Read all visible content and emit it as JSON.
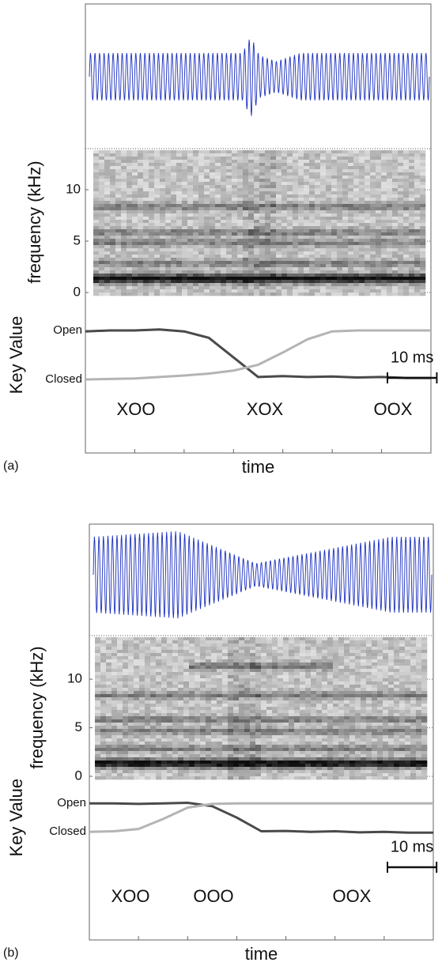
{
  "chart_data": [
    {
      "type": "line",
      "label": "(a)",
      "xlabel": "time",
      "spectrogram": {
        "ylabel": "frequency (kHz)",
        "ylim": [
          0,
          14
        ],
        "yticks": [
          0,
          5,
          10
        ]
      },
      "ylabel": "Key Value",
      "ylim": [
        -1.5,
        1.5
      ],
      "yticks": [
        {
          "value": 1,
          "label": "Open"
        },
        {
          "value": 0,
          "label": "Closed"
        }
      ],
      "xlim": [
        0,
        70
      ],
      "xticks": [
        0,
        10,
        20,
        30,
        40,
        50,
        60,
        70
      ],
      "x": [
        0,
        5,
        10,
        15,
        20,
        25,
        30,
        35,
        40,
        45,
        50,
        55,
        60,
        65,
        70
      ],
      "series": [
        {
          "color": "#4a4a4a",
          "values": [
            0.98,
            1.0,
            1.0,
            1.02,
            0.98,
            0.85,
            0.45,
            0.05,
            0.07,
            0.05,
            0.06,
            0.04,
            0.05,
            0.03,
            0.03
          ]
        },
        {
          "color": "#b4b4b4",
          "values": [
            0.0,
            0.01,
            0.02,
            0.05,
            0.08,
            0.12,
            0.18,
            0.3,
            0.55,
            0.82,
            0.98,
            1.0,
            1.0,
            1.0,
            1.0
          ]
        }
      ],
      "scale_bar": {
        "value": 10,
        "label": "10 ms"
      },
      "annotations": [
        "XOO",
        "XOX",
        "OOX"
      ]
    },
    {
      "type": "line",
      "label": "(b)",
      "xlabel": "time",
      "spectrogram": {
        "ylabel": "frequency (kHz)",
        "ylim": [
          0,
          14
        ],
        "yticks": [
          0,
          5,
          10
        ]
      },
      "ylabel": "Key Value",
      "ylim": [
        -3.8,
        1.7
      ],
      "yticks": [
        {
          "value": 1,
          "label": "Open"
        },
        {
          "value": 0,
          "label": "Closed"
        }
      ],
      "xlim": [
        0,
        70
      ],
      "xticks": [
        0,
        10,
        20,
        30,
        40,
        50,
        60,
        70
      ],
      "x": [
        0,
        5,
        10,
        15,
        20,
        25,
        30,
        35,
        40,
        45,
        50,
        55,
        60,
        65,
        70
      ],
      "series": [
        {
          "color": "#4a4a4a",
          "values": [
            1.0,
            1.0,
            0.98,
            1.0,
            1.02,
            0.9,
            0.5,
            0.02,
            0.03,
            0.0,
            0.02,
            -0.02,
            0.0,
            -0.03,
            -0.03
          ]
        },
        {
          "color": "#b4b4b4",
          "values": [
            0.0,
            0.02,
            0.1,
            0.45,
            0.85,
            0.98,
            1.0,
            1.0,
            1.0,
            1.0,
            1.0,
            1.0,
            1.0,
            1.0,
            1.0
          ]
        }
      ],
      "scale_bar": {
        "value": 10,
        "label": "10 ms"
      },
      "annotations": [
        "XOO",
        "OOO",
        "OOX"
      ]
    }
  ]
}
